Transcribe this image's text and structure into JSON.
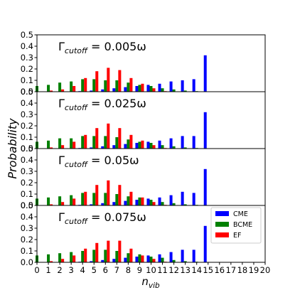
{
  "chart_data": {
    "type": "bar",
    "ylabel": "Probability",
    "xlabel": "n",
    "xlabel_sub": "vib",
    "x": [
      0,
      1,
      2,
      3,
      4,
      5,
      6,
      7,
      8,
      9,
      10,
      11,
      12,
      13,
      14,
      15,
      16,
      17,
      18,
      19,
      20
    ],
    "xlim": [
      0,
      20
    ],
    "ylim": [
      0,
      0.5
    ],
    "yticks": [
      0.0,
      0.1,
      0.2,
      0.3,
      0.4,
      0.5
    ],
    "ytick_labels": [
      "0.0",
      "0.1",
      "0.2",
      "0.3",
      "0.4",
      "0.5"
    ],
    "series_colors": {
      "CME": "#0000ff",
      "BCME": "#008000",
      "EF": "#ff0000"
    },
    "legend": {
      "entries": [
        "CME",
        "BCME",
        "EF"
      ],
      "location": "bottom panel, right"
    },
    "panels": [
      {
        "gamma_prefix": "Γ",
        "gamma_sub": "cutoff",
        "gamma_value": " = 0.005ω",
        "series": [
          {
            "name": "CME",
            "values": [
              0,
              0,
              0,
              0,
              0.005,
              0.01,
              0.02,
              0.03,
              0.04,
              0.05,
              0.06,
              0.07,
              0.09,
              0.1,
              0.11,
              0.32,
              0,
              0,
              0,
              0,
              0
            ]
          },
          {
            "name": "BCME",
            "values": [
              0.05,
              0.06,
              0.08,
              0.09,
              0.11,
              0.11,
              0.1,
              0.1,
              0.08,
              0.06,
              0.05,
              0.03,
              0.02,
              0.01,
              0.005,
              0.001,
              0,
              0,
              0,
              0,
              0
            ]
          },
          {
            "name": "EF",
            "values": [
              0,
              0.01,
              0.02,
              0.05,
              0.12,
              0.18,
              0.21,
              0.19,
              0.12,
              0.07,
              0.03,
              0.005,
              0,
              0,
              0,
              0,
              0,
              0,
              0,
              0,
              0
            ]
          }
        ]
      },
      {
        "gamma_prefix": "Γ",
        "gamma_sub": "cutoff",
        "gamma_value": " = 0.025ω",
        "series": [
          {
            "name": "CME",
            "values": [
              0,
              0,
              0,
              0,
              0.005,
              0.01,
              0.02,
              0.03,
              0.04,
              0.05,
              0.06,
              0.07,
              0.09,
              0.11,
              0.11,
              0.32,
              0,
              0,
              0,
              0,
              0
            ]
          },
          {
            "name": "BCME",
            "values": [
              0.06,
              0.07,
              0.09,
              0.09,
              0.11,
              0.11,
              0.11,
              0.1,
              0.08,
              0.06,
              0.05,
              0.03,
              0.02,
              0.01,
              0.005,
              0.001,
              0,
              0,
              0,
              0,
              0
            ]
          },
          {
            "name": "EF",
            "values": [
              0,
              0.01,
              0.03,
              0.06,
              0.12,
              0.18,
              0.22,
              0.18,
              0.12,
              0.07,
              0.03,
              0.005,
              0,
              0,
              0,
              0,
              0,
              0,
              0,
              0,
              0
            ]
          }
        ]
      },
      {
        "gamma_prefix": "Γ",
        "gamma_sub": "cutoff",
        "gamma_value": " = 0.05ω",
        "series": [
          {
            "name": "CME",
            "values": [
              0,
              0,
              0,
              0,
              0.005,
              0.01,
              0.02,
              0.03,
              0.04,
              0.05,
              0.06,
              0.07,
              0.09,
              0.12,
              0.11,
              0.32,
              0,
              0,
              0,
              0,
              0
            ]
          },
          {
            "name": "BCME",
            "values": [
              0.06,
              0.07,
              0.08,
              0.09,
              0.11,
              0.11,
              0.11,
              0.1,
              0.08,
              0.07,
              0.05,
              0.03,
              0.02,
              0.01,
              0.005,
              0.001,
              0,
              0,
              0,
              0,
              0
            ]
          },
          {
            "name": "EF",
            "values": [
              0,
              0.01,
              0.03,
              0.06,
              0.12,
              0.18,
              0.22,
              0.18,
              0.12,
              0.07,
              0.03,
              0.005,
              0,
              0,
              0,
              0,
              0,
              0,
              0,
              0,
              0
            ]
          }
        ]
      },
      {
        "gamma_prefix": "Γ",
        "gamma_sub": "cutoff",
        "gamma_value": " = 0.075ω",
        "series": [
          {
            "name": "CME",
            "values": [
              0,
              0,
              0,
              0,
              0.005,
              0.01,
              0.02,
              0.03,
              0.04,
              0.05,
              0.06,
              0.07,
              0.09,
              0.11,
              0.11,
              0.32,
              0,
              0,
              0,
              0,
              0
            ]
          },
          {
            "name": "BCME",
            "values": [
              0.06,
              0.07,
              0.08,
              0.09,
              0.1,
              0.11,
              0.11,
              0.1,
              0.08,
              0.07,
              0.05,
              0.04,
              0.02,
              0.01,
              0.005,
              0.001,
              0,
              0,
              0,
              0,
              0
            ]
          },
          {
            "name": "EF",
            "values": [
              0,
              0.01,
              0.03,
              0.06,
              0.12,
              0.17,
              0.19,
              0.19,
              0.12,
              0.06,
              0.03,
              0.005,
              0,
              0,
              0,
              0,
              0,
              0,
              0,
              0,
              0
            ]
          }
        ]
      }
    ]
  }
}
